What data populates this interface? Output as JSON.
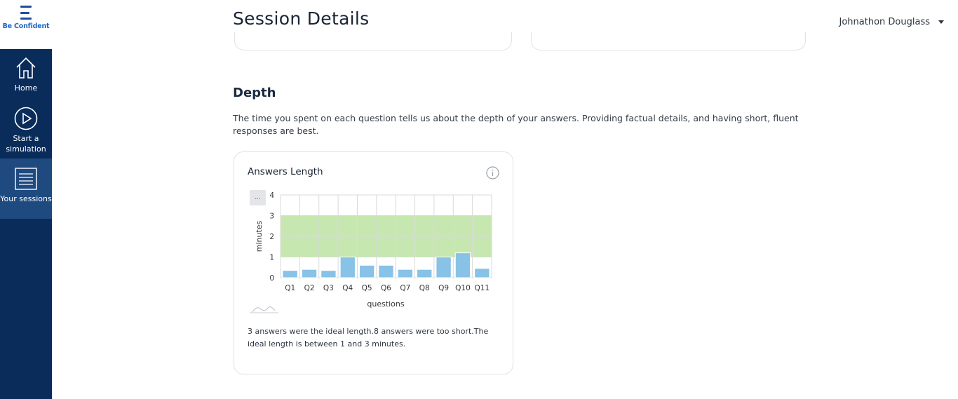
{
  "brand": {
    "name": "Be Confident"
  },
  "sidebar": {
    "items": [
      {
        "label": "Home",
        "icon": "home-icon",
        "active": false
      },
      {
        "label": "Start a simulation",
        "icon": "play-icon",
        "active": false
      },
      {
        "label": "Your sessions",
        "icon": "list-icon",
        "active": true
      }
    ]
  },
  "header": {
    "title": "Session Details",
    "user_name": "Johnathon Douglass"
  },
  "depth": {
    "title": "Depth",
    "description": "The time you spent on each question tells us about the depth of your answers. Providing factual details, and having short, fluent responses are best.",
    "card": {
      "title": "Answers Length",
      "menu_label": "...",
      "caption": "3 answers were the ideal length.8 answers were too short.The ideal length is between 1 and 3 minutes."
    }
  },
  "colors": {
    "sidebar_bg": "#0a2c5a",
    "sidebar_active": "#1f4a80",
    "bar_fill": "#88c2e6",
    "ideal_band": "#c6e8b0"
  },
  "chart_data": {
    "type": "bar",
    "categories": [
      "Q1",
      "Q2",
      "Q3",
      "Q4",
      "Q5",
      "Q6",
      "Q7",
      "Q8",
      "Q9",
      "Q10",
      "Q11"
    ],
    "values": [
      0.35,
      0.4,
      0.35,
      1.0,
      0.6,
      0.6,
      0.4,
      0.4,
      1.0,
      1.2,
      0.45
    ],
    "xlabel": "questions",
    "ylabel": "minutes",
    "ylim": [
      0,
      4
    ],
    "yticks": [
      0,
      1,
      2,
      3,
      4
    ],
    "ideal_band": [
      1,
      3
    ],
    "grid": true
  }
}
